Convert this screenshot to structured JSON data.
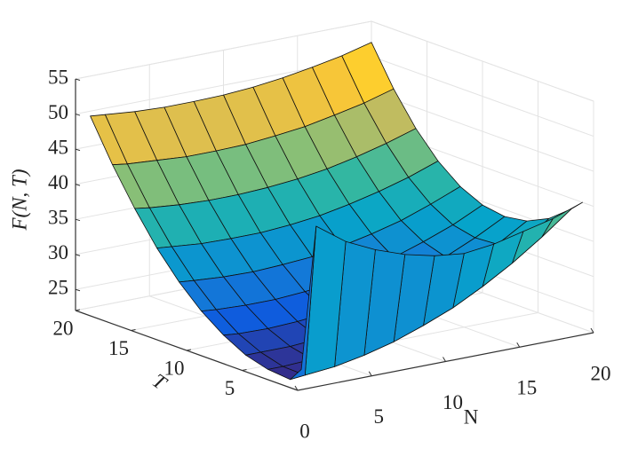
{
  "chart_data": {
    "type": "surface",
    "x_label": "N",
    "y_label": "T",
    "z_label": "F(N, T)",
    "x": [
      1,
      2,
      4,
      6,
      8,
      10,
      12,
      14,
      16,
      18,
      20
    ],
    "y": [
      1,
      2,
      4,
      6,
      8,
      10,
      12,
      14,
      16,
      18,
      20
    ],
    "z": [
      [
        24,
        44,
        41,
        39,
        37.5,
        36.5,
        36,
        36.5,
        37.5,
        38.5,
        40
      ],
      [
        22.0,
        22.2,
        22.6,
        23.4,
        24.5,
        26.0,
        27.7,
        29.9,
        32.4,
        35.3,
        38.5
      ],
      [
        22.3,
        22.3,
        22.5,
        23.1,
        23.9,
        25.1,
        26.6,
        28.4,
        30.6,
        33.1,
        36
      ],
      [
        23.2,
        23.2,
        23.2,
        23.5,
        24.2,
        25.1,
        26.3,
        27.9,
        29.8,
        32.0,
        34.5
      ],
      [
        24.9,
        24.7,
        24.6,
        24.8,
        25.2,
        26.0,
        27.0,
        28.3,
        29.9,
        31.8,
        34
      ],
      [
        27.2,
        27.0,
        26.8,
        26.8,
        27.1,
        27.6,
        28.4,
        29.5,
        30.9,
        32.5,
        34.5
      ],
      [
        30.2,
        30.0,
        29.7,
        29.6,
        29.8,
        30.1,
        30.8,
        31.7,
        32.8,
        34.3,
        36
      ],
      [
        33.9,
        33.7,
        33.3,
        33.2,
        33.2,
        33.5,
        34.0,
        34.8,
        35.8,
        37.0,
        38.5
      ],
      [
        38.4,
        38.1,
        37.7,
        37.5,
        37.5,
        37.7,
        38.1,
        38.7,
        39.6,
        40.7,
        42
      ],
      [
        43.5,
        43.2,
        42.9,
        42.6,
        42.6,
        42.7,
        43.1,
        43.6,
        44.4,
        45.3,
        46.5
      ],
      [
        49.3,
        49.1,
        48.7,
        48.5,
        48.5,
        48.6,
        48.9,
        49.4,
        50.1,
        50.9,
        52
      ]
    ],
    "xlim": [
      0,
      20
    ],
    "xticks": [
      0,
      5,
      10,
      15,
      20
    ],
    "ylim": [
      0,
      20
    ],
    "yticks": [
      5,
      10,
      15,
      20
    ],
    "zlim": [
      22,
      55
    ],
    "zticks": [
      25,
      30,
      35,
      40,
      45,
      50,
      55
    ],
    "grid": true,
    "colormap": [
      "#352a87",
      "#0f5cdd",
      "#1481d6",
      "#06a4ca",
      "#2eb7a4",
      "#87bf77",
      "#d1bb59",
      "#fec832",
      "#f9fb0e"
    ]
  }
}
